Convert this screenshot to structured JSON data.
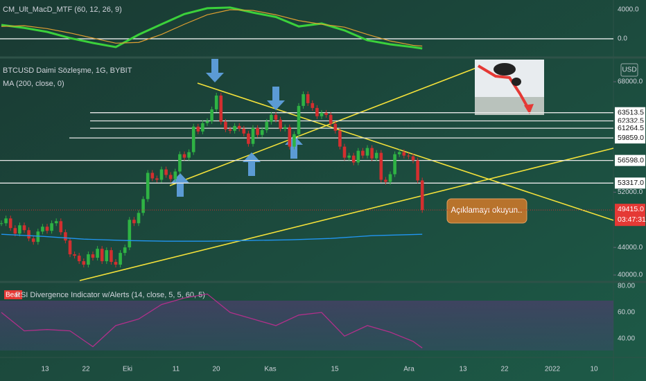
{
  "chart_data": {
    "type": "candlestick",
    "title": "BTCUSD Daimi Sözleşme, 1G, BYBIT",
    "ma_title": "MA (200, close, 0)",
    "currency": "USD",
    "note": "Açıklamayı okuyun..",
    "timer": "03:47:31",
    "x_labels": [
      "13",
      "22",
      "Eki",
      "11",
      "20",
      "Kas",
      "15",
      "Ara",
      "13",
      "22",
      "2022",
      "10"
    ],
    "closes": [
      47500,
      48200,
      46800,
      46000,
      47200,
      46500,
      45300,
      44800,
      46300,
      47000,
      46400,
      47500,
      47800,
      46200,
      45000,
      43000,
      42800,
      42000,
      41500,
      43000,
      42500,
      43800,
      42000,
      43600,
      41900,
      41500,
      43200,
      44000,
      48000,
      47500,
      49000,
      51000,
      54800,
      54000,
      53800,
      55300,
      54500,
      53900,
      55000,
      57500,
      57000,
      57800,
      61500,
      60800,
      62000,
      62300,
      64000,
      66000,
      62200,
      61100,
      60900,
      61600,
      61200,
      60500,
      59000,
      61300,
      60300,
      61000,
      62200,
      63200,
      62500,
      61200,
      61400,
      58600,
      60400,
      64500,
      66200,
      64900,
      64200,
      63000,
      63500,
      63200,
      61900,
      60900,
      58600,
      57000,
      57300,
      56300,
      58000,
      57300,
      58400,
      56900,
      57700,
      53800,
      53500,
      54600,
      57500,
      57800,
      57300,
      57200,
      56600,
      53700,
      49415
    ],
    "ma": {
      "name": "MA",
      "color": "#2196f3",
      "values": [
        45900,
        45600,
        45200,
        45000,
        44900,
        44900,
        45000,
        45100,
        45300,
        45700,
        45900
      ]
    },
    "ylim": [
      40000,
      68000
    ],
    "yticks": [
      {
        "value": 68000,
        "label": "68000.0"
      },
      {
        "value": 52000,
        "label": "52000.0"
      },
      {
        "value": 44000,
        "label": "44000.0"
      },
      {
        "value": 40000,
        "label": "40000.0"
      }
    ],
    "levels": [
      {
        "value": 63513.5,
        "label": "63513.5"
      },
      {
        "value": 62332.5,
        "label": "62332.5"
      },
      {
        "value": 61264.5,
        "label": "61264.5"
      },
      {
        "value": 59859,
        "label": "59859.0"
      },
      {
        "value": 56598,
        "label": "56598.0"
      },
      {
        "value": 53317,
        "label": "53317.0"
      }
    ],
    "last_price": {
      "value": 49415,
      "label": "49415.0"
    },
    "macd": {
      "title": "CM_Ult_MacD_MTF (60, 12, 26, 9)",
      "ylim": [
        -1500,
        5000
      ],
      "yticks": [
        {
          "value": 4000,
          "label": "4000.0"
        },
        {
          "value": 0,
          "label": "0.0"
        }
      ],
      "series": [
        {
          "name": "MACD",
          "color": "#3bd13b",
          "values": [
            1900,
            1500,
            950,
            100,
            -570,
            -1140,
            570,
            2000,
            3400,
            4200,
            4300,
            3600,
            3000,
            1700,
            2100,
            1150,
            -200,
            -760,
            -1140,
            -1330
          ]
        },
        {
          "name": "Signal",
          "color": "#e0a030",
          "values": [
            1700,
            1800,
            1400,
            800,
            100,
            -600,
            -500,
            600,
            2000,
            3300,
            4000,
            3900,
            3300,
            2500,
            2000,
            1600,
            600,
            -300,
            -900,
            -1000
          ]
        }
      ]
    },
    "rsi": {
      "title": "RSI Divergence Indicator w/Alerts (14, close, 5, 5, 60, 5)",
      "tag": "Bear",
      "color": "#b0308a",
      "ylim": [
        26,
        82
      ],
      "yticks": [
        {
          "value": 80,
          "label": "80.00"
        },
        {
          "value": 60,
          "label": "60.00"
        },
        {
          "value": 40,
          "label": "40.00"
        }
      ],
      "values": [
        60,
        46,
        47,
        46,
        34,
        50,
        55,
        66,
        71,
        74,
        60,
        55,
        50,
        58,
        60,
        42,
        50,
        45,
        38,
        33
      ]
    }
  }
}
